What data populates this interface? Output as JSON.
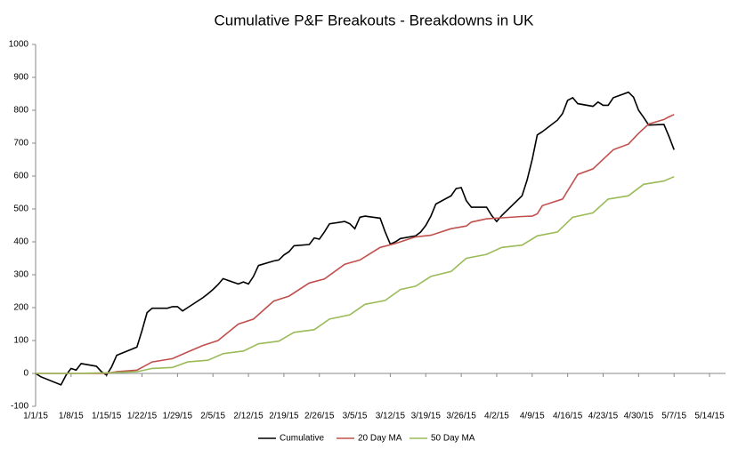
{
  "chart_data": {
    "type": "line",
    "title": "Cumulative P&F Breakouts - Breakdowns in UK",
    "xlim": [
      0,
      133
    ],
    "xticks": [
      {
        "value": 0,
        "label": "1/1/15"
      },
      {
        "value": 7,
        "label": "1/8/15"
      },
      {
        "value": 14,
        "label": "1/15/15"
      },
      {
        "value": 21,
        "label": "1/22/15"
      },
      {
        "value": 28,
        "label": "1/29/15"
      },
      {
        "value": 35,
        "label": "2/5/15"
      },
      {
        "value": 42,
        "label": "2/12/15"
      },
      {
        "value": 49,
        "label": "2/19/15"
      },
      {
        "value": 56,
        "label": "2/26/15"
      },
      {
        "value": 63,
        "label": "3/5/15"
      },
      {
        "value": 70,
        "label": "3/12/15"
      },
      {
        "value": 77,
        "label": "3/19/15"
      },
      {
        "value": 84,
        "label": "3/26/15"
      },
      {
        "value": 91,
        "label": "4/2/15"
      },
      {
        "value": 98,
        "label": "4/9/15"
      },
      {
        "value": 105,
        "label": "4/16/15"
      },
      {
        "value": 112,
        "label": "4/23/15"
      },
      {
        "value": 119,
        "label": "4/30/15"
      },
      {
        "value": 126,
        "label": "5/7/15"
      },
      {
        "value": 133,
        "label": "5/14/15"
      }
    ],
    "ylim": [
      -100,
      1000
    ],
    "yticks": [
      -100,
      0,
      100,
      200,
      300,
      400,
      500,
      600,
      700,
      800,
      900,
      1000
    ],
    "grid": false,
    "legend": "bottom",
    "series": [
      {
        "name": "Cumulative",
        "color": "#000000",
        "x": [
          0,
          1,
          5,
          6,
          7,
          8,
          9,
          12,
          13,
          14,
          15,
          16,
          20,
          21,
          22,
          23,
          26,
          27,
          28,
          29,
          30,
          33,
          34,
          35,
          36,
          37,
          40,
          41,
          42,
          43,
          44,
          47,
          48,
          49,
          50,
          51,
          54,
          55,
          56,
          57,
          58,
          61,
          62,
          63,
          64,
          65,
          68,
          69,
          70,
          71,
          72,
          75,
          76,
          77,
          78,
          79,
          82,
          83,
          84,
          85,
          86,
          89,
          90,
          91,
          92,
          96,
          97,
          98,
          99,
          100,
          103,
          104,
          105,
          106,
          107,
          110,
          111,
          112,
          113,
          114,
          117,
          118,
          119,
          120,
          121,
          124,
          125,
          126
        ],
        "values": [
          0,
          -10,
          -35,
          -5,
          15,
          10,
          30,
          22,
          5,
          -5,
          20,
          55,
          80,
          130,
          185,
          198,
          198,
          203,
          203,
          190,
          200,
          230,
          242,
          255,
          270,
          288,
          272,
          278,
          272,
          295,
          328,
          342,
          345,
          360,
          370,
          388,
          392,
          412,
          408,
          430,
          455,
          462,
          455,
          440,
          475,
          478,
          472,
          430,
          393,
          400,
          410,
          418,
          430,
          450,
          478,
          515,
          540,
          562,
          565,
          525,
          505,
          505,
          480,
          462,
          480,
          540,
          588,
          650,
          725,
          735,
          770,
          790,
          830,
          838,
          820,
          812,
          825,
          815,
          815,
          838,
          855,
          840,
          800,
          778,
          755,
          757,
          720,
          680
        ]
      },
      {
        "name": "20 Day MA",
        "color": "#c0504d",
        "x": [
          0,
          14,
          16,
          20,
          23,
          27,
          30,
          33,
          36,
          40,
          43,
          47,
          50,
          54,
          57,
          61,
          64,
          68,
          71,
          75,
          78,
          82,
          85,
          86,
          89,
          92,
          96,
          98,
          99,
          100,
          104,
          107,
          110,
          114,
          117,
          119,
          121,
          124,
          125,
          126
        ],
        "values": [
          0,
          0,
          5,
          10,
          35,
          45,
          65,
          85,
          100,
          150,
          165,
          220,
          235,
          275,
          287,
          332,
          345,
          383,
          395,
          415,
          420,
          440,
          448,
          460,
          470,
          473,
          477,
          478,
          485,
          510,
          530,
          605,
          622,
          680,
          697,
          730,
          758,
          772,
          780,
          787
        ]
      },
      {
        "name": "50 Day MA",
        "color": "#9bbb59",
        "x": [
          0,
          7,
          14,
          20,
          23,
          27,
          30,
          34,
          37,
          41,
          44,
          48,
          51,
          55,
          58,
          62,
          65,
          69,
          72,
          75,
          78,
          82,
          85,
          89,
          92,
          96,
          99,
          103,
          106,
          110,
          113,
          117,
          120,
          124,
          126
        ],
        "values": [
          0,
          0,
          2,
          5,
          15,
          18,
          35,
          40,
          60,
          68,
          90,
          98,
          125,
          133,
          165,
          178,
          210,
          222,
          255,
          265,
          295,
          310,
          350,
          362,
          383,
          390,
          418,
          430,
          475,
          488,
          530,
          540,
          575,
          585,
          598
        ]
      }
    ]
  }
}
